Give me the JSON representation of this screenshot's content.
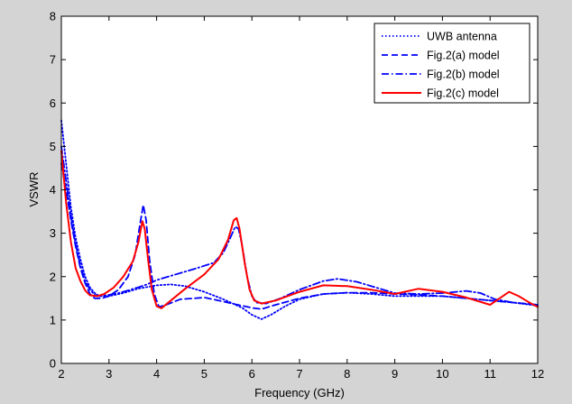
{
  "chart_data": {
    "type": "line",
    "title": "",
    "xlabel": "Frequency (GHz)",
    "ylabel": "VSWR",
    "xlim": [
      2,
      12
    ],
    "ylim": [
      0,
      8
    ],
    "xticks": [
      2,
      3,
      4,
      5,
      6,
      7,
      8,
      9,
      10,
      11,
      12
    ],
    "yticks": [
      0,
      1,
      2,
      3,
      4,
      5,
      6,
      7,
      8
    ],
    "grid": false,
    "legend_position": "top-right",
    "series": [
      {
        "name": "UWB antenna",
        "color": "#0000ff",
        "style": "dotted",
        "points": [
          [
            2.0,
            5.6
          ],
          [
            2.1,
            4.6
          ],
          [
            2.2,
            3.6
          ],
          [
            2.3,
            2.9
          ],
          [
            2.4,
            2.4
          ],
          [
            2.5,
            2.0
          ],
          [
            2.6,
            1.75
          ],
          [
            2.7,
            1.62
          ],
          [
            2.8,
            1.55
          ],
          [
            3.0,
            1.55
          ],
          [
            3.3,
            1.62
          ],
          [
            3.6,
            1.72
          ],
          [
            4.0,
            1.8
          ],
          [
            4.3,
            1.82
          ],
          [
            4.6,
            1.78
          ],
          [
            5.0,
            1.65
          ],
          [
            5.4,
            1.48
          ],
          [
            5.8,
            1.28
          ],
          [
            6.0,
            1.12
          ],
          [
            6.2,
            1.02
          ],
          [
            6.4,
            1.12
          ],
          [
            6.7,
            1.32
          ],
          [
            7.0,
            1.48
          ],
          [
            7.5,
            1.6
          ],
          [
            8.0,
            1.63
          ],
          [
            8.5,
            1.6
          ],
          [
            9.0,
            1.55
          ],
          [
            9.5,
            1.55
          ],
          [
            10.0,
            1.55
          ],
          [
            10.5,
            1.5
          ],
          [
            11.0,
            1.45
          ],
          [
            11.5,
            1.4
          ],
          [
            12.0,
            1.33
          ]
        ]
      },
      {
        "name": "Fig.2(a) model",
        "color": "#0000ff",
        "style": "dashed",
        "points": [
          [
            2.0,
            4.6
          ],
          [
            2.1,
            4.0
          ],
          [
            2.2,
            3.3
          ],
          [
            2.3,
            2.7
          ],
          [
            2.4,
            2.2
          ],
          [
            2.5,
            1.85
          ],
          [
            2.6,
            1.6
          ],
          [
            2.7,
            1.5
          ],
          [
            2.85,
            1.5
          ],
          [
            3.0,
            1.55
          ],
          [
            3.2,
            1.7
          ],
          [
            3.4,
            2.0
          ],
          [
            3.55,
            2.5
          ],
          [
            3.65,
            3.2
          ],
          [
            3.72,
            3.65
          ],
          [
            3.78,
            3.3
          ],
          [
            3.85,
            2.4
          ],
          [
            3.95,
            1.6
          ],
          [
            4.05,
            1.3
          ],
          [
            4.2,
            1.35
          ],
          [
            4.5,
            1.48
          ],
          [
            4.8,
            1.5
          ],
          [
            5.0,
            1.52
          ],
          [
            5.3,
            1.45
          ],
          [
            5.7,
            1.35
          ],
          [
            6.0,
            1.28
          ],
          [
            6.2,
            1.25
          ],
          [
            6.5,
            1.35
          ],
          [
            7.0,
            1.5
          ],
          [
            7.5,
            1.6
          ],
          [
            8.0,
            1.63
          ],
          [
            8.5,
            1.63
          ],
          [
            9.0,
            1.6
          ],
          [
            9.5,
            1.58
          ],
          [
            10.0,
            1.55
          ],
          [
            10.5,
            1.5
          ],
          [
            11.0,
            1.45
          ],
          [
            11.5,
            1.4
          ],
          [
            12.0,
            1.35
          ]
        ]
      },
      {
        "name": "Fig.2(b) model",
        "color": "#0000ff",
        "style": "dashdot",
        "points": [
          [
            2.0,
            5.0
          ],
          [
            2.1,
            4.2
          ],
          [
            2.2,
            3.4
          ],
          [
            2.3,
            2.75
          ],
          [
            2.4,
            2.25
          ],
          [
            2.5,
            1.9
          ],
          [
            2.6,
            1.7
          ],
          [
            2.7,
            1.58
          ],
          [
            2.8,
            1.55
          ],
          [
            3.0,
            1.58
          ],
          [
            3.2,
            1.62
          ],
          [
            3.4,
            1.68
          ],
          [
            3.6,
            1.75
          ],
          [
            3.8,
            1.82
          ],
          [
            4.0,
            1.92
          ],
          [
            4.4,
            2.05
          ],
          [
            4.8,
            2.18
          ],
          [
            5.2,
            2.32
          ],
          [
            5.4,
            2.55
          ],
          [
            5.55,
            2.9
          ],
          [
            5.65,
            3.15
          ],
          [
            5.72,
            3.1
          ],
          [
            5.8,
            2.7
          ],
          [
            5.9,
            2.0
          ],
          [
            6.0,
            1.55
          ],
          [
            6.1,
            1.4
          ],
          [
            6.3,
            1.38
          ],
          [
            6.6,
            1.5
          ],
          [
            7.0,
            1.7
          ],
          [
            7.5,
            1.9
          ],
          [
            7.8,
            1.95
          ],
          [
            8.2,
            1.88
          ],
          [
            8.6,
            1.75
          ],
          [
            9.0,
            1.62
          ],
          [
            9.5,
            1.6
          ],
          [
            10.0,
            1.62
          ],
          [
            10.5,
            1.67
          ],
          [
            10.8,
            1.62
          ],
          [
            11.1,
            1.48
          ],
          [
            11.5,
            1.4
          ],
          [
            12.0,
            1.35
          ]
        ]
      },
      {
        "name": "Fig.2(c) model",
        "color": "#ff0000",
        "style": "solid",
        "points": [
          [
            2.0,
            4.9
          ],
          [
            2.1,
            3.7
          ],
          [
            2.2,
            2.8
          ],
          [
            2.3,
            2.2
          ],
          [
            2.4,
            1.9
          ],
          [
            2.5,
            1.68
          ],
          [
            2.6,
            1.57
          ],
          [
            2.75,
            1.55
          ],
          [
            2.9,
            1.6
          ],
          [
            3.1,
            1.75
          ],
          [
            3.3,
            2.0
          ],
          [
            3.5,
            2.35
          ],
          [
            3.62,
            2.8
          ],
          [
            3.7,
            3.28
          ],
          [
            3.75,
            3.1
          ],
          [
            3.82,
            2.4
          ],
          [
            3.9,
            1.7
          ],
          [
            4.0,
            1.32
          ],
          [
            4.1,
            1.27
          ],
          [
            4.3,
            1.45
          ],
          [
            4.6,
            1.72
          ],
          [
            5.0,
            2.05
          ],
          [
            5.3,
            2.4
          ],
          [
            5.5,
            2.85
          ],
          [
            5.62,
            3.3
          ],
          [
            5.68,
            3.35
          ],
          [
            5.74,
            3.1
          ],
          [
            5.85,
            2.3
          ],
          [
            5.95,
            1.7
          ],
          [
            6.05,
            1.45
          ],
          [
            6.2,
            1.38
          ],
          [
            6.5,
            1.45
          ],
          [
            7.0,
            1.65
          ],
          [
            7.5,
            1.8
          ],
          [
            8.0,
            1.78
          ],
          [
            8.5,
            1.7
          ],
          [
            9.0,
            1.6
          ],
          [
            9.5,
            1.72
          ],
          [
            10.0,
            1.65
          ],
          [
            10.5,
            1.52
          ],
          [
            11.0,
            1.35
          ],
          [
            11.2,
            1.5
          ],
          [
            11.4,
            1.65
          ],
          [
            11.6,
            1.55
          ],
          [
            11.8,
            1.42
          ],
          [
            12.0,
            1.3
          ]
        ]
      }
    ]
  }
}
